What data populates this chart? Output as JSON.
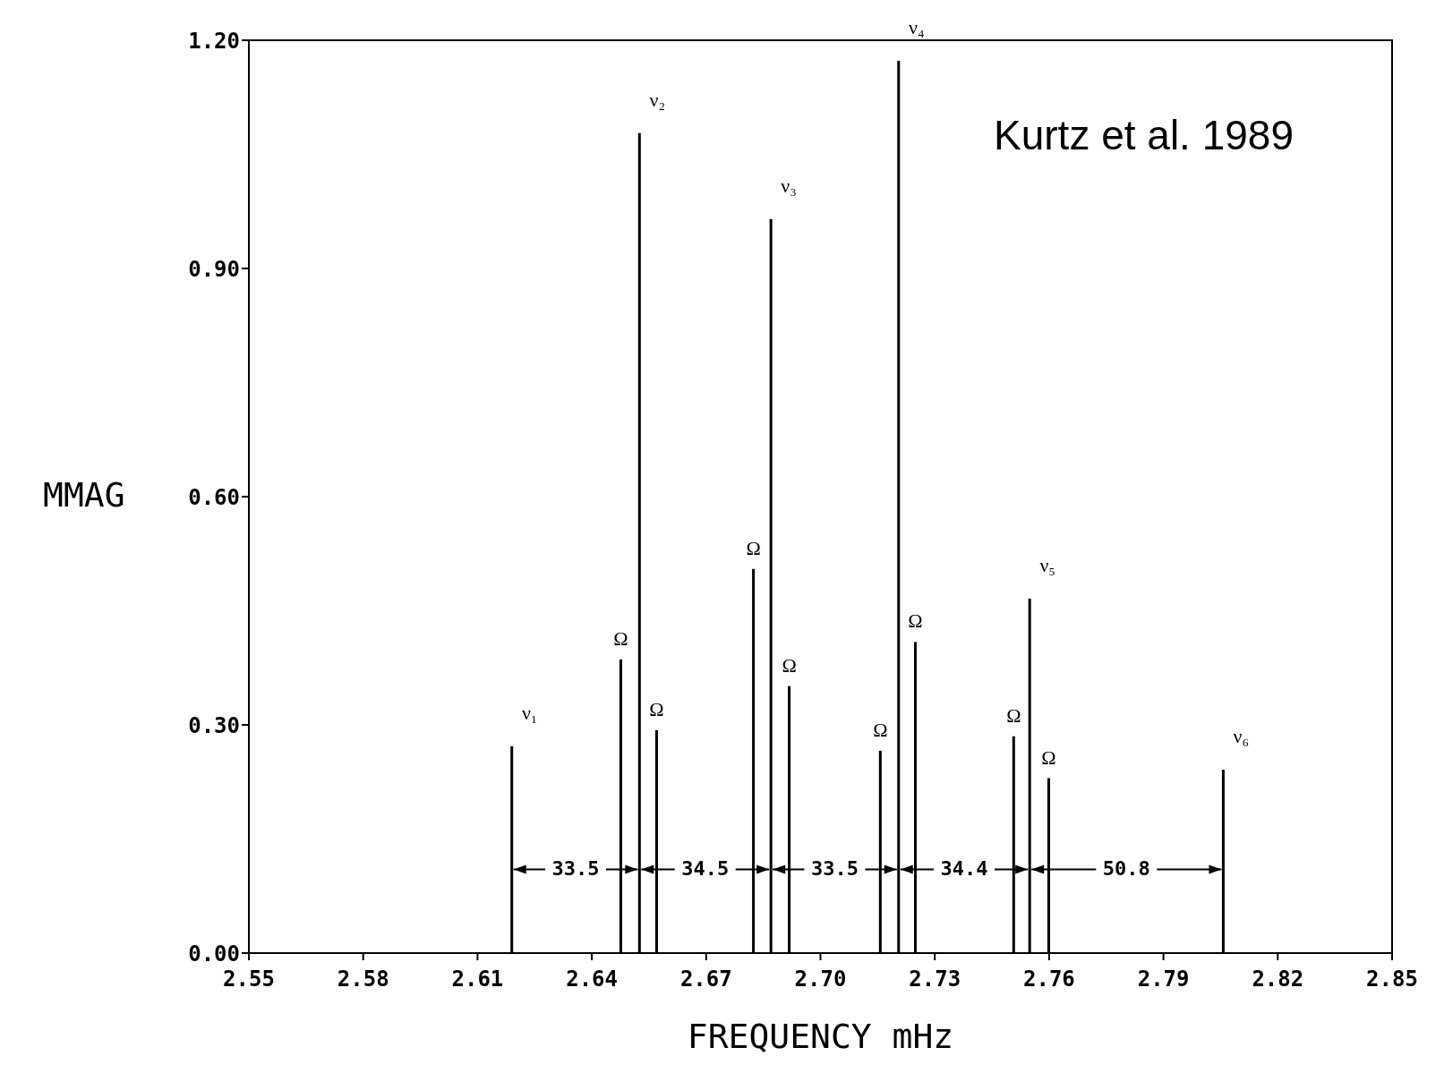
{
  "chart_data": {
    "type": "bar",
    "xlabel": "FREQUENCY mHz",
    "ylabel": "MMAG",
    "series": [
      {
        "color": "#000000",
        "x": [
          2.619,
          2.6476,
          2.6525,
          2.657,
          2.6824,
          2.687,
          2.6918,
          2.7157,
          2.7205,
          2.7249,
          2.7507,
          2.7549,
          2.7599,
          2.8057
        ],
        "values": [
          0.272,
          0.386,
          1.078,
          0.293,
          0.505,
          0.965,
          0.351,
          0.266,
          1.173,
          0.409,
          0.285,
          0.466,
          0.23,
          0.241
        ]
      }
    ],
    "xlim": [
      2.55,
      2.85
    ],
    "xticks": [
      2.55,
      2.58,
      2.61,
      2.64,
      2.67,
      {
        "value": 2.7,
        "label": "2.70"
      },
      2.73,
      2.76,
      2.79,
      2.82,
      2.85
    ],
    "ylim": [
      0,
      1.2
    ],
    "yticks": [
      {
        "value": 0,
        "label": "0.00"
      },
      {
        "value": 0.3,
        "label": "0.30"
      },
      {
        "value": 0.6,
        "label": "0.60"
      },
      {
        "value": 0.9,
        "label": "0.90"
      },
      {
        "value": 1.2,
        "label": "1.20"
      }
    ],
    "annotations": [
      "Kurtz et al. 1989",
      {
        "text": "ν₁",
        "x": 2.619,
        "y": 0.272
      },
      {
        "text": "ν₂",
        "x": 2.6525,
        "y": 1.078
      },
      {
        "text": "ν₃",
        "x": 2.687,
        "y": 0.965
      },
      {
        "text": "ν₄",
        "x": 2.7205,
        "y": 1.173
      },
      {
        "text": "ν₅",
        "x": 2.7549,
        "y": 0.466
      },
      {
        "text": "ν₆",
        "x": 2.8057,
        "y": 0.241
      },
      {
        "text": "Ω",
        "x": 2.6476,
        "y": 0.386
      },
      {
        "text": "Ω",
        "x": 2.657,
        "y": 0.293
      },
      {
        "text": "Ω",
        "x": 2.6824,
        "y": 0.505
      },
      {
        "text": "Ω",
        "x": 2.6918,
        "y": 0.351
      },
      {
        "text": "Ω",
        "x": 2.7157,
        "y": 0.266
      },
      {
        "text": "Ω",
        "x": 2.7249,
        "y": 0.409
      },
      {
        "text": "Ω",
        "x": 2.7507,
        "y": 0.285
      },
      {
        "text": "Ω",
        "x": 2.7599,
        "y": 0.23
      },
      {
        "text": "33.5",
        "x": 2.6525,
        "y": 0.11
      },
      {
        "text": "34.5",
        "x": 2.687,
        "y": 0.11
      },
      {
        "text": "33.5",
        "x": 2.7205,
        "y": 0.11
      },
      {
        "text": "34.4",
        "x": 2.7549,
        "y": 0.11
      },
      {
        "text": "50.8",
        "x": 2.8057,
        "y": 0.11
      }
    ]
  }
}
